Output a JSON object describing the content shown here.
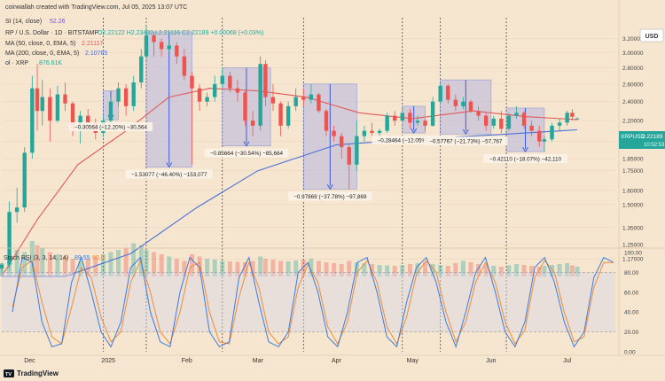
{
  "header": {
    "created_line": "coinwallah created with TradingView.com, Jul 05, 2025 13:07 UTC",
    "rsi_line": "SI (14, close)",
    "rsi_value": "52.26",
    "symbol_line": "RP / U.S. Dollar · 1D · BITSTAMP",
    "ohlc_line": "O2.22122  H2.23432  L2.21116  C2.22189  +0.00068 (+0.03%)",
    "ema50_line": "MA (50, close, 0, EMA, 5)",
    "ema50_value": "2.21117",
    "ema200_line": "MA (200, close, 0, EMA, 5)",
    "ema200_value": "2.10765",
    "vol_line": "ol · XRP",
    "vol_value": "876.61K",
    "currency_button": "USD",
    "price_tag": "XRPUSD",
    "price_tag_value": "2.22189"
  },
  "footer": {
    "brand": "TradingView",
    "logo_text": "TV"
  },
  "colors": {
    "background": "#f6e6d0",
    "up": "#26a69a",
    "down": "#ef5350",
    "ema50": "#e05a5a",
    "ema200": "#4a6fd8",
    "stoch_k": "#3d7bd9",
    "stoch_d": "#f08b3c",
    "measure_fill": "#b7b8e0",
    "measure_line": "#3b5bdb"
  },
  "chart_data": {
    "type": "candlestick",
    "price_axis_ticks": [
      "3.20000",
      "3.00000",
      "2.80000",
      "2.60000",
      "2.40000",
      "2.20000",
      "2.00000",
      "1.85000",
      "1.75000",
      "1.60000",
      "1.50000",
      "1.35000",
      "1.25000",
      "1.17000"
    ],
    "time_axis_labels": [
      "Dec",
      "2025",
      "Feb",
      "Mar",
      "Apr",
      "May",
      "Jun",
      "Jul"
    ],
    "price_scale": "log",
    "price_range": [
      1.08,
      3.52
    ],
    "date_range": [
      "2024-11-20",
      "2025-07-20"
    ],
    "series": [
      {
        "name": "XRPUSD",
        "kind": "ohlc",
        "points": [
          [
            "2024-11-20",
            1.12,
            1.15,
            1.09,
            1.14
          ],
          [
            "2024-11-23",
            1.14,
            1.52,
            1.12,
            1.45
          ],
          [
            "2024-11-26",
            1.45,
            1.62,
            1.38,
            1.48
          ],
          [
            "2024-11-29",
            1.48,
            1.95,
            1.45,
            1.9
          ],
          [
            "2024-12-02",
            1.9,
            2.7,
            1.85,
            2.55
          ],
          [
            "2024-12-04",
            2.55,
            2.85,
            2.1,
            2.3
          ],
          [
            "2024-12-06",
            2.3,
            2.65,
            2.15,
            2.45
          ],
          [
            "2024-12-09",
            2.45,
            2.55,
            2.0,
            2.2
          ],
          [
            "2024-12-12",
            2.2,
            2.58,
            2.18,
            2.48
          ],
          [
            "2024-12-15",
            2.48,
            2.62,
            2.3,
            2.38
          ],
          [
            "2024-12-18",
            2.38,
            2.4,
            2.05,
            2.12
          ],
          [
            "2024-12-21",
            2.12,
            2.3,
            1.98,
            2.25
          ],
          [
            "2024-12-24",
            2.25,
            2.32,
            2.1,
            2.18
          ],
          [
            "2024-12-27",
            2.18,
            2.22,
            2.02,
            2.08
          ],
          [
            "2024-12-30",
            2.08,
            2.25,
            2.04,
            2.2
          ],
          [
            "2025-01-02",
            2.2,
            2.45,
            2.18,
            2.4
          ],
          [
            "2025-01-05",
            2.4,
            2.62,
            2.35,
            2.55
          ],
          [
            "2025-01-08",
            2.55,
            2.6,
            2.25,
            2.35
          ],
          [
            "2025-01-11",
            2.35,
            2.7,
            2.3,
            2.62
          ],
          [
            "2025-01-14",
            2.62,
            3.05,
            2.55,
            2.95
          ],
          [
            "2025-01-16",
            2.95,
            3.4,
            2.9,
            3.25
          ],
          [
            "2025-01-19",
            3.25,
            3.3,
            2.95,
            3.15
          ],
          [
            "2025-01-22",
            3.15,
            3.2,
            2.95,
            3.05
          ],
          [
            "2025-01-25",
            3.05,
            3.18,
            3.0,
            3.1
          ],
          [
            "2025-01-28",
            3.1,
            3.15,
            2.85,
            2.95
          ],
          [
            "2025-01-31",
            2.95,
            3.05,
            2.65,
            2.7
          ],
          [
            "2025-02-03",
            2.7,
            2.75,
            1.8,
            2.55
          ],
          [
            "2025-02-06",
            2.55,
            2.6,
            2.3,
            2.4
          ],
          [
            "2025-02-09",
            2.4,
            2.5,
            2.35,
            2.45
          ],
          [
            "2025-02-12",
            2.45,
            2.7,
            2.4,
            2.6
          ],
          [
            "2025-02-15",
            2.6,
            2.8,
            2.55,
            2.7
          ],
          [
            "2025-02-18",
            2.7,
            2.75,
            2.5,
            2.55
          ],
          [
            "2025-02-21",
            2.55,
            2.65,
            2.4,
            2.5
          ],
          [
            "2025-02-24",
            2.5,
            2.52,
            2.15,
            2.2
          ],
          [
            "2025-02-27",
            2.2,
            2.3,
            2.05,
            2.15
          ],
          [
            "2025-03-02",
            2.15,
            2.95,
            2.1,
            2.85
          ],
          [
            "2025-03-04",
            2.85,
            2.9,
            2.35,
            2.45
          ],
          [
            "2025-03-07",
            2.45,
            2.6,
            2.3,
            2.38
          ],
          [
            "2025-03-10",
            2.38,
            2.4,
            2.05,
            2.15
          ],
          [
            "2025-03-13",
            2.15,
            2.4,
            2.12,
            2.35
          ],
          [
            "2025-03-16",
            2.35,
            2.55,
            2.3,
            2.45
          ],
          [
            "2025-03-19",
            2.45,
            2.55,
            2.35,
            2.42
          ],
          [
            "2025-03-22",
            2.42,
            2.6,
            2.38,
            2.48
          ],
          [
            "2025-03-25",
            2.48,
            2.5,
            2.28,
            2.3
          ],
          [
            "2025-03-28",
            2.3,
            2.32,
            2.05,
            2.1
          ],
          [
            "2025-03-31",
            2.1,
            2.15,
            2.0,
            2.05
          ],
          [
            "2025-04-03",
            2.05,
            2.08,
            1.85,
            1.95
          ],
          [
            "2025-04-06",
            1.95,
            1.98,
            1.61,
            1.8
          ],
          [
            "2025-04-09",
            1.8,
            2.2,
            1.75,
            2.05
          ],
          [
            "2025-04-12",
            2.05,
            2.15,
            2.0,
            2.1
          ],
          [
            "2025-04-15",
            2.1,
            2.18,
            2.05,
            2.08
          ],
          [
            "2025-04-18",
            2.08,
            2.12,
            2.02,
            2.1
          ],
          [
            "2025-04-21",
            2.1,
            2.28,
            2.08,
            2.25
          ],
          [
            "2025-04-24",
            2.25,
            2.3,
            2.15,
            2.2
          ],
          [
            "2025-04-27",
            2.2,
            2.35,
            2.18,
            2.28
          ],
          [
            "2025-04-30",
            2.28,
            2.32,
            2.12,
            2.18
          ],
          [
            "2025-05-03",
            2.18,
            2.25,
            2.15,
            2.2
          ],
          [
            "2025-05-06",
            2.2,
            2.22,
            2.1,
            2.15
          ],
          [
            "2025-05-09",
            2.15,
            2.45,
            2.14,
            2.4
          ],
          [
            "2025-05-12",
            2.4,
            2.62,
            2.38,
            2.58
          ],
          [
            "2025-05-15",
            2.58,
            2.6,
            2.38,
            2.42
          ],
          [
            "2025-05-18",
            2.42,
            2.48,
            2.3,
            2.35
          ],
          [
            "2025-05-21",
            2.35,
            2.45,
            2.32,
            2.4
          ],
          [
            "2025-05-24",
            2.4,
            2.42,
            2.28,
            2.3
          ],
          [
            "2025-05-27",
            2.3,
            2.35,
            2.2,
            2.25
          ],
          [
            "2025-05-30",
            2.25,
            2.28,
            2.1,
            2.15
          ],
          [
            "2025-06-02",
            2.15,
            2.25,
            2.12,
            2.22
          ],
          [
            "2025-06-05",
            2.22,
            2.3,
            2.08,
            2.12
          ],
          [
            "2025-06-08",
            2.12,
            2.28,
            2.1,
            2.25
          ],
          [
            "2025-06-11",
            2.25,
            2.35,
            2.22,
            2.28
          ],
          [
            "2025-06-14",
            2.28,
            2.3,
            2.12,
            2.15
          ],
          [
            "2025-06-17",
            2.15,
            2.2,
            2.05,
            2.1
          ],
          [
            "2025-06-20",
            2.1,
            2.15,
            1.95,
            2.0
          ],
          [
            "2025-06-22",
            2.0,
            2.05,
            1.91,
            2.02
          ],
          [
            "2025-06-25",
            2.02,
            2.18,
            2.0,
            2.15
          ],
          [
            "2025-06-28",
            2.15,
            2.22,
            2.1,
            2.18
          ],
          [
            "2025-07-01",
            2.18,
            2.3,
            2.15,
            2.28
          ],
          [
            "2025-07-03",
            2.28,
            2.32,
            2.2,
            2.24
          ],
          [
            "2025-07-05",
            2.2212,
            2.2343,
            2.2112,
            2.2219
          ]
        ]
      },
      {
        "name": "EMA 50",
        "points": [
          [
            "2024-11-20",
            0.98
          ],
          [
            "2024-12-04",
            1.4
          ],
          [
            "2024-12-20",
            1.8
          ],
          [
            "2025-01-08",
            2.1
          ],
          [
            "2025-01-25",
            2.45
          ],
          [
            "2025-02-10",
            2.55
          ],
          [
            "2025-03-01",
            2.52
          ],
          [
            "2025-03-20",
            2.45
          ],
          [
            "2025-04-10",
            2.28
          ],
          [
            "2025-05-01",
            2.22
          ],
          [
            "2025-05-25",
            2.3
          ],
          [
            "2025-06-15",
            2.24
          ],
          [
            "2025-07-05",
            2.21
          ]
        ]
      },
      {
        "name": "EMA 200",
        "points": [
          [
            "2024-11-20",
            0.88
          ],
          [
            "2024-12-15",
            0.98
          ],
          [
            "2025-01-10",
            1.2
          ],
          [
            "2025-02-05",
            1.48
          ],
          [
            "2025-03-01",
            1.75
          ],
          [
            "2025-04-01",
            1.97
          ],
          [
            "2025-05-01",
            2.02
          ],
          [
            "2025-06-01",
            2.06
          ],
          [
            "2025-07-05",
            2.11
          ]
        ]
      }
    ],
    "annotations": [
      {
        "label": "−0.30564 (−12.20%) −30,564",
        "from": [
          "2024-12-30",
          2.52
        ],
        "to": [
          "2025-01-05",
          2.21
        ]
      },
      {
        "label": "−1.53077 (−46.40%) −153,077",
        "from": [
          "2025-01-16",
          3.3
        ],
        "to": [
          "2025-02-03",
          1.78
        ]
      },
      {
        "label": "−0.85664 (−30.54%) −85,664",
        "from": [
          "2025-02-15",
          2.8
        ],
        "to": [
          "2025-03-06",
          1.96
        ]
      },
      {
        "label": "−0.97869 (−37.78%) −97,869",
        "from": [
          "2025-03-19",
          2.6
        ],
        "to": [
          "2025-04-09",
          1.61
        ]
      },
      {
        "label": "−0.28464 (−12.05%) −28,464",
        "from": [
          "2025-04-27",
          2.35
        ],
        "to": [
          "2025-05-06",
          2.08
        ]
      },
      {
        "label": "−0.57767 (−21.73%) −57,767",
        "from": [
          "2025-05-12",
          2.65
        ],
        "to": [
          "2025-06-01",
          2.07
        ]
      },
      {
        "label": "−0.42110 (−18.07%) −42,110",
        "from": [
          "2025-06-07",
          2.33
        ],
        "to": [
          "2025-06-22",
          1.91
        ]
      }
    ],
    "stoch_rsi": {
      "name": "Stoch RSI (3, 3, 14, 14)",
      "k_value": "89.55",
      "d_value": "90.0",
      "levels": [
        "100.00",
        "80.00",
        "60.00",
        "40.00",
        "20.00",
        "0.00"
      ],
      "k": [
        40,
        95,
        90,
        30,
        5,
        8,
        70,
        95,
        60,
        20,
        5,
        30,
        85,
        95,
        40,
        10,
        5,
        60,
        95,
        85,
        20,
        5,
        10,
        75,
        95,
        50,
        10,
        5,
        20,
        80,
        90,
        60,
        15,
        5,
        40,
        90,
        95,
        60,
        15,
        5,
        50,
        85,
        95,
        70,
        30,
        5,
        40,
        80,
        95,
        60,
        20,
        5,
        30,
        85,
        95,
        70,
        30,
        5,
        20,
        75,
        95,
        90
      ],
      "d": [
        45,
        85,
        92,
        50,
        15,
        8,
        45,
        85,
        75,
        35,
        10,
        20,
        70,
        92,
        60,
        20,
        8,
        40,
        85,
        90,
        40,
        10,
        8,
        55,
        90,
        65,
        20,
        8,
        15,
        65,
        88,
        70,
        25,
        8,
        30,
        80,
        92,
        70,
        25,
        8,
        35,
        78,
        92,
        80,
        40,
        10,
        30,
        70,
        90,
        70,
        30,
        8,
        22,
        75,
        92,
        80,
        40,
        10,
        15,
        65,
        90,
        90
      ]
    },
    "volume": [
      30,
      45,
      60,
      55,
      80,
      70,
      65,
      55,
      50,
      45,
      40,
      35,
      40,
      45,
      50,
      55,
      60,
      65,
      75,
      70,
      60,
      55,
      50,
      45,
      40,
      35,
      50,
      45,
      40,
      38,
      35,
      34,
      33,
      32,
      35,
      45,
      40,
      38,
      35,
      34,
      36,
      38,
      40,
      35,
      32,
      30,
      28,
      35,
      32,
      30,
      28,
      26,
      25,
      24,
      26,
      28,
      30,
      32,
      28,
      26,
      24,
      30,
      35,
      32,
      28,
      26,
      24,
      22,
      25,
      28,
      26,
      24,
      22,
      24,
      26,
      28,
      30,
      25,
      22,
      20,
      22,
      25
    ]
  }
}
